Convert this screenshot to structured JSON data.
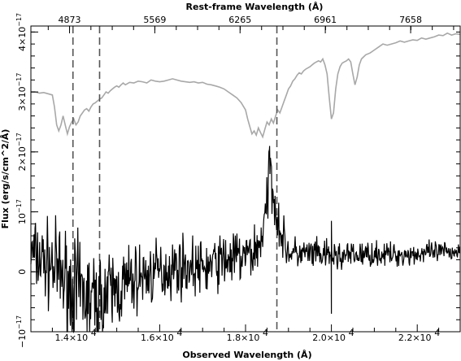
{
  "chart_data": {
    "type": "line",
    "title": "",
    "xlabel": "Observed Wavelength (Å)",
    "ylabel": "Flux (erg/s/cm^2/Å)",
    "top_xlabel": "Rest-frame Wavelength (Å)",
    "xlim": [
      13000,
      23000
    ],
    "ylim": [
      -1e-17,
      4.1e-17
    ],
    "bottom_ticks": [
      {
        "value": 14000,
        "label": "1.4×10"
      },
      {
        "value": 16000,
        "label": "1.6×10"
      },
      {
        "value": 18000,
        "label": "1.8×10"
      },
      {
        "value": 20000,
        "label": "2.0×10"
      },
      {
        "value": 22000,
        "label": "2.2×10"
      }
    ],
    "bottom_tick_exponent": "4",
    "left_ticks": [
      {
        "value": -1e-17,
        "label": "−10",
        "exp": "−17"
      },
      {
        "value": 0,
        "label": "0",
        "exp": ""
      },
      {
        "value": 1e-17,
        "label": "10",
        "exp": "−17"
      },
      {
        "value": 2e-17,
        "label": "2×10",
        "exp": "−17"
      },
      {
        "value": 3e-17,
        "label": "3×10",
        "exp": "−17"
      },
      {
        "value": 4e-17,
        "label": "4×10",
        "exp": "−17"
      }
    ],
    "top_ticks": [
      {
        "value": 13900,
        "label": "4873"
      },
      {
        "value": 15886,
        "label": "5569"
      },
      {
        "value": 17872,
        "label": "6265"
      },
      {
        "value": 19858,
        "label": "6961"
      },
      {
        "value": 21846,
        "label": "7658"
      }
    ],
    "vertical_lines": [
      13980,
      14600,
      18730
    ],
    "series": [
      {
        "role": "template",
        "color": "#a8a8a8",
        "x": [
          13000,
          13100,
          13200,
          13300,
          13400,
          13500,
          13550,
          13600,
          13650,
          13700,
          13750,
          13800,
          13850,
          13900,
          13950,
          14000,
          14050,
          14100,
          14150,
          14200,
          14250,
          14300,
          14350,
          14400,
          14450,
          14500,
          14550,
          14600,
          14650,
          14700,
          14750,
          14800,
          14850,
          14900,
          14950,
          15000,
          15050,
          15100,
          15150,
          15200,
          15300,
          15400,
          15500,
          15600,
          15700,
          15800,
          15900,
          16000,
          16100,
          16200,
          16300,
          16400,
          16500,
          16600,
          16700,
          16800,
          16900,
          17000,
          17100,
          17200,
          17300,
          17400,
          17500,
          17600,
          17700,
          17800,
          17900,
          18000,
          18050,
          18100,
          18150,
          18200,
          18250,
          18300,
          18350,
          18400,
          18450,
          18500,
          18550,
          18600,
          18650,
          18700,
          18750,
          18800,
          18850,
          18900,
          18950,
          19000,
          19050,
          19100,
          19150,
          19200,
          19250,
          19300,
          19350,
          19400,
          19450,
          19500,
          19550,
          19600,
          19650,
          19700,
          19750,
          19800,
          19850,
          19900,
          19950,
          20000,
          20050,
          20100,
          20150,
          20200,
          20250,
          20300,
          20350,
          20400,
          20450,
          20500,
          20550,
          20600,
          20650,
          20700,
          20800,
          20900,
          21000,
          21100,
          21200,
          21300,
          21400,
          21500,
          21600,
          21700,
          21800,
          21900,
          22000,
          22100,
          22200,
          22300,
          22400,
          22500,
          22600,
          22700,
          22800,
          22900,
          23000
        ],
        "values": [
          3e-17,
          3e-17,
          2.98e-17,
          2.99e-17,
          2.97e-17,
          2.95e-17,
          2.75e-17,
          2.45e-17,
          2.35e-17,
          2.45e-17,
          2.6e-17,
          2.45e-17,
          2.3e-17,
          2.42e-17,
          2.5e-17,
          2.55e-17,
          2.45e-17,
          2.5e-17,
          2.6e-17,
          2.65e-17,
          2.7e-17,
          2.72e-17,
          2.68e-17,
          2.75e-17,
          2.8e-17,
          2.82e-17,
          2.85e-17,
          2.88e-17,
          2.9e-17,
          2.95e-17,
          3e-17,
          2.98e-17,
          3.02e-17,
          3.05e-17,
          3.08e-17,
          3.1e-17,
          3.08e-17,
          3.12e-17,
          3.15e-17,
          3.12e-17,
          3.16e-17,
          3.15e-17,
          3.18e-17,
          3.17e-17,
          3.15e-17,
          3.2e-17,
          3.18e-17,
          3.17e-17,
          3.18e-17,
          3.2e-17,
          3.22e-17,
          3.2e-17,
          3.18e-17,
          3.17e-17,
          3.16e-17,
          3.17e-17,
          3.15e-17,
          3.16e-17,
          3.13e-17,
          3.12e-17,
          3.1e-17,
          3.08e-17,
          3.05e-17,
          3e-17,
          2.95e-17,
          2.9e-17,
          2.82e-17,
          2.7e-17,
          2.55e-17,
          2.42e-17,
          2.3e-17,
          2.35e-17,
          2.28e-17,
          2.4e-17,
          2.32e-17,
          2.25e-17,
          2.38e-17,
          2.5e-17,
          2.45e-17,
          2.55e-17,
          2.48e-17,
          2.6e-17,
          2.7e-17,
          2.65e-17,
          2.75e-17,
          2.85e-17,
          2.95e-17,
          3.05e-17,
          3.1e-17,
          3.18e-17,
          3.22e-17,
          3.28e-17,
          3.32e-17,
          3.3e-17,
          3.35e-17,
          3.38e-17,
          3.4e-17,
          3.42e-17,
          3.45e-17,
          3.48e-17,
          3.5e-17,
          3.52e-17,
          3.5e-17,
          3.55e-17,
          3.45e-17,
          3.3e-17,
          2.9e-17,
          2.55e-17,
          2.65e-17,
          3.05e-17,
          3.3e-17,
          3.42e-17,
          3.48e-17,
          3.5e-17,
          3.52e-17,
          3.55e-17,
          3.5e-17,
          3.3e-17,
          3.12e-17,
          3.25e-17,
          3.45e-17,
          3.55e-17,
          3.62e-17,
          3.65e-17,
          3.7e-17,
          3.75e-17,
          3.8e-17,
          3.78e-17,
          3.8e-17,
          3.82e-17,
          3.85e-17,
          3.83e-17,
          3.85e-17,
          3.87e-17,
          3.86e-17,
          3.9e-17,
          3.88e-17,
          3.9e-17,
          3.92e-17,
          3.95e-17,
          3.94e-17,
          3.98e-17,
          3.95e-17,
          3.97e-17,
          3.96e-17
        ]
      },
      {
        "role": "observed",
        "color": "#000000",
        "line": {
          "x": [
            13000,
            13500,
            14000,
            14500,
            15000,
            15500,
            16000,
            16500,
            17000,
            17500,
            18000,
            18300,
            18500,
            18550,
            18600,
            18650,
            18700,
            18750,
            18800,
            18850,
            18900,
            18950,
            19000,
            19100,
            19200,
            19400,
            19600,
            19800,
            20000,
            20500,
            21000,
            21500,
            22000,
            22500,
            23000
          ],
          "values": [
            3e-18,
            1e-18,
            -3e-18,
            -5e-18,
            -3e-18,
            -1e-18,
            0.0,
            1e-18,
            5e-19,
            2e-18,
            2.5e-18,
            4e-18,
            1e-17,
            1.8e-17,
            1.6e-17,
            1.3e-17,
            1.1e-17,
            9e-18,
            7e-18,
            6e-18,
            5e-18,
            4e-18,
            3.5e-18,
            3e-18,
            3e-18,
            3e-18,
            2.8e-18,
            2.7e-18,
            2.5e-18,
            2.7e-18,
            3e-18,
            2.8e-18,
            3e-18,
            3.2e-18,
            3.5e-18
          ]
        },
        "noise": {
          "x": [
            13000,
            13500,
            14000,
            14500,
            15000,
            15500,
            16000,
            17000,
            18000,
            18500,
            19000,
            20000,
            21000,
            22000,
            23000
          ],
          "values": [
            6e-18,
            7e-18,
            9e-18,
            8e-18,
            7e-18,
            5.5e-18,
            5e-18,
            4.5e-18,
            4.5e-18,
            5e-18,
            2.8e-18,
            2.5e-18,
            2e-18,
            1.8e-18,
            1.8e-18
          ]
        },
        "spikes": [
          {
            "x": 13850,
            "y": -1e-17
          },
          {
            "x": 13920,
            "y": -9e-18
          },
          {
            "x": 14060,
            "y": -8e-18
          },
          {
            "x": 14550,
            "y": -6e-18
          },
          {
            "x": 18560,
            "y": 2.1e-17
          },
          {
            "x": 20000,
            "y": -7e-18
          },
          {
            "x": 20000,
            "y": 8.5e-18
          }
        ]
      }
    ]
  }
}
